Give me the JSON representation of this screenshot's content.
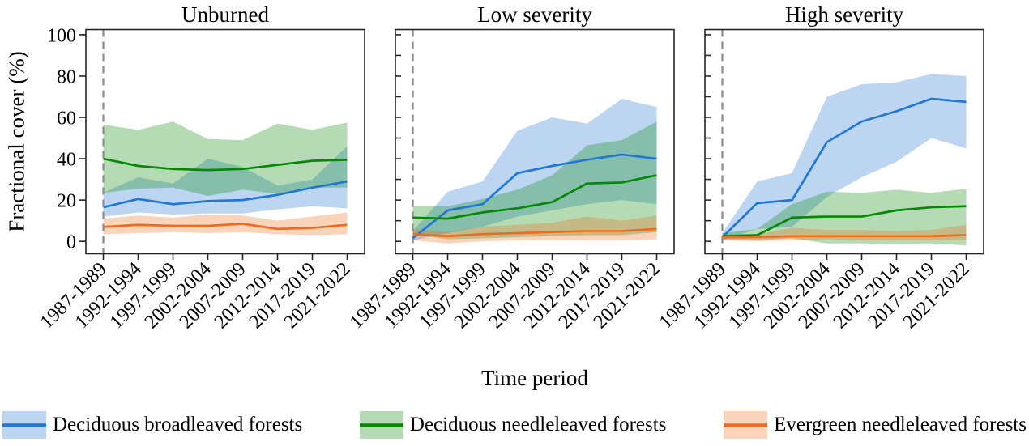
{
  "chart_data": {
    "type": "line",
    "title": "",
    "xlabel": "Time period",
    "ylabel": "Fractional cover (%)",
    "categories": [
      "1987-1989",
      "1992-1994",
      "1997-1999",
      "2002-2004",
      "2007-2009",
      "2012-2014",
      "2017-2019",
      "2021-2022"
    ],
    "y_ticks": [
      0,
      20,
      40,
      60,
      80,
      100
    ],
    "ylim": [
      0,
      100
    ],
    "grid": false,
    "legend_position": "bottom",
    "reference_line": {
      "x": "1987-1989",
      "style": "dashed",
      "color": "#8f8f8f"
    },
    "panels": [
      {
        "title": "Unburned",
        "series": [
          {
            "name": "Deciduous broadleaved forests",
            "color": "#2277d4",
            "values": [
              16.5,
              20.5,
              18,
              19.5,
              20,
              22.5,
              26,
              29
            ],
            "band_lower": [
              12,
              14,
              13,
              13.5,
              13.5,
              15.5,
              17,
              16
            ],
            "band_upper": [
              23.5,
              31,
              28,
              40,
              36,
              27,
              30,
              46
            ]
          },
          {
            "name": "Deciduous needleleaved forests",
            "color": "#068806",
            "values": [
              40,
              36.5,
              35,
              34.5,
              35,
              37,
              39,
              39.5
            ],
            "band_lower": [
              23.5,
              25.5,
              26,
              22,
              25,
              23,
              26,
              26
            ],
            "band_upper": [
              56.5,
              54,
              58,
              49.5,
              49,
              57,
              54,
              57.5
            ]
          },
          {
            "name": "Evergreen needleleaved forests",
            "color": "#ee6c1e",
            "values": [
              7,
              8,
              7.5,
              7.5,
              8.5,
              6,
              6.5,
              8
            ],
            "band_lower": [
              3.5,
              4,
              4.5,
              4,
              4.5,
              3.5,
              3,
              3.5
            ],
            "band_upper": [
              11,
              12.5,
              11.5,
              13,
              12.5,
              10,
              12,
              14
            ]
          }
        ]
      },
      {
        "title": "Low severity",
        "series": [
          {
            "name": "Deciduous broadleaved forests",
            "color": "#2277d4",
            "values": [
              1.5,
              15,
              18,
              33,
              36.5,
              39.5,
              42,
              40
            ],
            "band_lower": [
              0.5,
              4,
              7,
              12,
              15,
              18,
              20,
              18
            ],
            "band_upper": [
              5,
              24,
              29,
              53.5,
              60,
              57,
              69,
              65
            ]
          },
          {
            "name": "Deciduous needleleaved forests",
            "color": "#068806",
            "values": [
              11.5,
              11,
              14,
              16,
              19,
              28,
              28.5,
              32
            ],
            "band_lower": [
              3.5,
              1,
              1.5,
              2,
              2.5,
              3,
              3,
              4.5
            ],
            "band_upper": [
              17,
              17,
              20.5,
              25,
              32,
              46.5,
              49,
              58
            ]
          },
          {
            "name": "Evergreen needleleaved forests",
            "color": "#ee6c1e",
            "values": [
              3.5,
              2.5,
              3.5,
              4,
              4.5,
              5,
              5,
              6
            ],
            "band_lower": [
              0.5,
              -1,
              0,
              0.5,
              0.5,
              0.5,
              0.5,
              1
            ],
            "band_upper": [
              6,
              4.5,
              7,
              8,
              9,
              12,
              10,
              12.5
            ]
          }
        ]
      },
      {
        "title": "High severity",
        "series": [
          {
            "name": "Deciduous broadleaved forests",
            "color": "#2277d4",
            "values": [
              2,
              18.5,
              20,
              48,
              58,
              63,
              69,
              67.5
            ],
            "band_lower": [
              0.5,
              6,
              7,
              21.5,
              31,
              38.5,
              50,
              45
            ],
            "band_upper": [
              4,
              29,
              33,
              70,
              76,
              77,
              81,
              80
            ]
          },
          {
            "name": "Deciduous needleleaved forests",
            "color": "#068806",
            "values": [
              2.5,
              3,
              11.5,
              12,
              12,
              15,
              16.5,
              17
            ],
            "band_lower": [
              1,
              0.5,
              1.5,
              -1,
              -1,
              -1.5,
              -1,
              -2
            ],
            "band_upper": [
              4,
              6,
              18,
              24,
              23.5,
              25,
              23.5,
              25.5
            ]
          },
          {
            "name": "Evergreen needleleaved forests",
            "color": "#ee6c1e",
            "values": [
              2,
              2,
              2.5,
              2.5,
              2.5,
              2.5,
              2.5,
              3
            ],
            "band_lower": [
              0.5,
              0,
              0.5,
              1,
              0.5,
              0.5,
              0.5,
              0.5
            ],
            "band_upper": [
              3.5,
              3.5,
              6.5,
              5.5,
              5.5,
              5,
              5.5,
              8
            ]
          }
        ]
      }
    ]
  }
}
